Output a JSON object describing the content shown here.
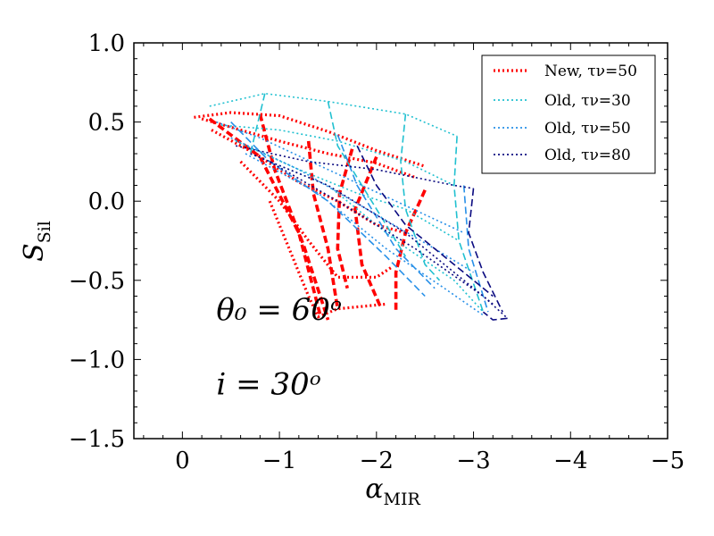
{
  "chart_data": {
    "type": "line",
    "xlabel": "α",
    "xlabel_sub": "MIR",
    "ylabel": "S",
    "ylabel_sub": "Sil",
    "xlim": [
      0.5,
      -5
    ],
    "ylim": [
      -1.5,
      1.0
    ],
    "x_ticks": [
      0,
      -1,
      -2,
      -3,
      -4,
      -5
    ],
    "x_tick_labels": [
      "0",
      "−1",
      "−2",
      "−3",
      "−4",
      "−5"
    ],
    "y_ticks": [
      1.0,
      0.5,
      0.0,
      -0.5,
      -1.0,
      -1.5
    ],
    "y_tick_labels": [
      "1.0",
      "0.5",
      "0.0",
      "−0.5",
      "−1.0",
      "−1.5"
    ],
    "annotations": [
      {
        "text": "θ₀ = 60ᵒ",
        "x": -0.35,
        "y": -1.05
      },
      {
        "text": "i = 30ᵒ",
        "x": -0.35,
        "y": -0.68
      }
    ],
    "legend": {
      "location": "upper right",
      "entries": [
        {
          "label": "New, τν=50",
          "color": "#ff0000",
          "style": "dotted-thick"
        },
        {
          "label": "Old, τν=30",
          "color": "#20c0d0",
          "style": "dotted"
        },
        {
          "label": "Old, τν=50",
          "color": "#2890e8",
          "style": "dotted"
        },
        {
          "label": "Old, τν=80",
          "color": "#0a0a80",
          "style": "dotted"
        }
      ]
    },
    "series": [
      {
        "name": "New, τν=50",
        "color": "#ff0000",
        "dash": "dotted",
        "width": 3.2,
        "points": [
          [
            -0.12,
            0.53
          ],
          [
            -0.5,
            0.56
          ],
          [
            -1.0,
            0.54
          ],
          [
            -1.5,
            0.44
          ],
          [
            -2.0,
            0.32
          ],
          [
            -2.5,
            0.22
          ]
        ]
      },
      {
        "name": "New, τν=50",
        "color": "#ff0000",
        "dash": "dotted",
        "width": 3.2,
        "points": [
          [
            -0.2,
            0.52
          ],
          [
            -0.6,
            0.45
          ],
          [
            -1.0,
            0.38
          ],
          [
            -1.5,
            0.3
          ],
          [
            -2.0,
            0.24
          ],
          [
            -2.4,
            0.15
          ]
        ]
      },
      {
        "name": "New, τν=50",
        "color": "#ff0000",
        "dash": "dotted",
        "width": 3.2,
        "points": [
          [
            -0.3,
            0.45
          ],
          [
            -0.75,
            0.3
          ],
          [
            -1.2,
            0.12
          ],
          [
            -1.6,
            0.0
          ],
          [
            -2.0,
            -0.15
          ],
          [
            -2.3,
            -0.2
          ]
        ]
      },
      {
        "name": "New, τν=50",
        "color": "#ff0000",
        "dash": "dotted",
        "width": 3.2,
        "points": [
          [
            -0.6,
            0.25
          ],
          [
            -1.0,
            0.0
          ],
          [
            -1.3,
            -0.25
          ],
          [
            -1.6,
            -0.48
          ],
          [
            -2.0,
            -0.48
          ],
          [
            -2.15,
            -0.42
          ]
        ]
      },
      {
        "name": "New, τν=50",
        "color": "#ff0000",
        "dash": "dotted",
        "width": 3.2,
        "points": [
          [
            -0.9,
            0.0
          ],
          [
            -1.1,
            -0.3
          ],
          [
            -1.3,
            -0.6
          ],
          [
            -1.4,
            -0.73
          ],
          [
            -1.6,
            -0.68
          ],
          [
            -2.1,
            -0.65
          ]
        ]
      },
      {
        "name": "New, τν=50",
        "color": "#ff0000",
        "dash": "dashed",
        "width": 3.6,
        "points": [
          [
            -0.28,
            0.52
          ],
          [
            -0.8,
            0.28
          ],
          [
            -1.2,
            -0.2
          ],
          [
            -1.42,
            -0.72
          ]
        ]
      },
      {
        "name": "New, τν=50",
        "color": "#ff0000",
        "dash": "dashed",
        "width": 3.6,
        "points": [
          [
            -0.8,
            0.55
          ],
          [
            -0.95,
            0.2
          ],
          [
            -1.25,
            -0.28
          ],
          [
            -1.5,
            -0.75
          ]
        ]
      },
      {
        "name": "New, τν=50",
        "color": "#ff0000",
        "dash": "dashed",
        "width": 3.6,
        "points": [
          [
            -1.3,
            0.38
          ],
          [
            -1.35,
            0.05
          ],
          [
            -1.5,
            -0.3
          ],
          [
            -1.6,
            -0.68
          ]
        ]
      },
      {
        "name": "New, τν=50",
        "color": "#ff0000",
        "dash": "dashed",
        "width": 3.6,
        "points": [
          [
            -1.75,
            0.33
          ],
          [
            -1.62,
            0.05
          ],
          [
            -1.6,
            -0.3
          ],
          [
            -1.7,
            -0.55
          ]
        ]
      },
      {
        "name": "New, τν=50",
        "color": "#ff0000",
        "dash": "dashed",
        "width": 3.6,
        "points": [
          [
            -2.0,
            0.28
          ],
          [
            -1.78,
            -0.05
          ],
          [
            -1.85,
            -0.4
          ],
          [
            -2.05,
            -0.68
          ]
        ]
      },
      {
        "name": "New, τν=50",
        "color": "#ff0000",
        "dash": "dashed",
        "width": 3.6,
        "points": [
          [
            -2.5,
            0.07
          ],
          [
            -2.3,
            -0.2
          ],
          [
            -2.2,
            -0.45
          ],
          [
            -2.2,
            -0.7
          ]
        ]
      },
      {
        "name": "Old, τν=30",
        "color": "#20c0d0",
        "dash": "dotted",
        "width": 1.6,
        "points": [
          [
            -0.28,
            0.6
          ],
          [
            -0.85,
            0.68
          ],
          [
            -1.5,
            0.63
          ],
          [
            -2.3,
            0.55
          ],
          [
            -2.83,
            0.41
          ]
        ]
      },
      {
        "name": "Old, τν=30",
        "color": "#20c0d0",
        "dash": "dotted",
        "width": 1.6,
        "points": [
          [
            -0.4,
            0.48
          ],
          [
            -1.0,
            0.45
          ],
          [
            -1.6,
            0.38
          ],
          [
            -2.3,
            0.25
          ],
          [
            -2.8,
            0.1
          ]
        ]
      },
      {
        "name": "Old, τν=30",
        "color": "#20c0d0",
        "dash": "dotted",
        "width": 1.6,
        "points": [
          [
            -0.55,
            0.38
          ],
          [
            -1.2,
            0.2
          ],
          [
            -1.8,
            0.05
          ],
          [
            -2.3,
            -0.05
          ],
          [
            -2.85,
            -0.25
          ]
        ]
      },
      {
        "name": "Old, τν=30",
        "color": "#20c0d0",
        "dash": "dotted",
        "width": 1.6,
        "points": [
          [
            -0.7,
            0.3
          ],
          [
            -1.5,
            0.1
          ],
          [
            -2.2,
            -0.25
          ],
          [
            -2.8,
            -0.5
          ],
          [
            -3.1,
            -0.7
          ]
        ]
      },
      {
        "name": "Old, τν=30",
        "color": "#20c0d0",
        "dash": "dashed",
        "width": 1.6,
        "points": [
          [
            -0.85,
            0.68
          ],
          [
            -0.7,
            0.3
          ]
        ]
      },
      {
        "name": "Old, τν=30",
        "color": "#20c0d0",
        "dash": "dashed",
        "width": 1.6,
        "points": [
          [
            -1.5,
            0.63
          ],
          [
            -1.6,
            0.35
          ],
          [
            -1.95,
            0.0
          ],
          [
            -2.3,
            -0.35
          ]
        ]
      },
      {
        "name": "Old, τν=30",
        "color": "#20c0d0",
        "dash": "dashed",
        "width": 1.6,
        "points": [
          [
            -2.3,
            0.55
          ],
          [
            -2.25,
            0.25
          ],
          [
            -2.3,
            -0.05
          ],
          [
            -2.5,
            -0.4
          ],
          [
            -2.65,
            -0.5
          ]
        ]
      },
      {
        "name": "Old, τν=30",
        "color": "#20c0d0",
        "dash": "dashed",
        "width": 1.6,
        "points": [
          [
            -2.83,
            0.41
          ],
          [
            -2.8,
            0.1
          ],
          [
            -2.85,
            -0.25
          ],
          [
            -3.1,
            -0.7
          ]
        ]
      },
      {
        "name": "Old, τν=50",
        "color": "#2890e8",
        "dash": "dotted",
        "width": 1.6,
        "points": [
          [
            -0.35,
            0.5
          ],
          [
            -0.8,
            0.4
          ],
          [
            -1.5,
            0.2
          ],
          [
            -2.2,
            0.0
          ],
          [
            -2.9,
            -0.2
          ]
        ]
      },
      {
        "name": "Old, τν=50",
        "color": "#2890e8",
        "dash": "dotted",
        "width": 1.6,
        "points": [
          [
            -0.5,
            0.4
          ],
          [
            -1.2,
            0.2
          ],
          [
            -1.9,
            -0.05
          ],
          [
            -2.6,
            -0.3
          ],
          [
            -3.0,
            -0.45
          ]
        ]
      },
      {
        "name": "Old, τν=50",
        "color": "#2890e8",
        "dash": "dotted",
        "width": 1.6,
        "points": [
          [
            -0.65,
            0.3
          ],
          [
            -1.4,
            0.05
          ],
          [
            -2.1,
            -0.3
          ],
          [
            -2.7,
            -0.55
          ],
          [
            -3.1,
            -0.72
          ]
        ]
      },
      {
        "name": "Old, τν=50",
        "color": "#2890e8",
        "dash": "dashed",
        "width": 1.6,
        "points": [
          [
            -0.5,
            0.5
          ],
          [
            -0.9,
            0.25
          ],
          [
            -1.5,
            0.0
          ],
          [
            -2.1,
            -0.35
          ],
          [
            -2.5,
            -0.6
          ]
        ]
      },
      {
        "name": "Old, τν=50",
        "color": "#2890e8",
        "dash": "dashed",
        "width": 1.6,
        "points": [
          [
            -1.6,
            0.42
          ],
          [
            -1.8,
            0.1
          ],
          [
            -2.2,
            -0.3
          ],
          [
            -2.6,
            -0.55
          ]
        ]
      },
      {
        "name": "Old, τν=50",
        "color": "#2890e8",
        "dash": "dashed",
        "width": 1.6,
        "points": [
          [
            -2.9,
            0.1
          ],
          [
            -2.95,
            -0.3
          ],
          [
            -3.15,
            -0.7
          ]
        ]
      },
      {
        "name": "Old, τν=80",
        "color": "#0a0a80",
        "dash": "dotted",
        "width": 1.6,
        "points": [
          [
            -0.55,
            0.35
          ],
          [
            -1.3,
            0.25
          ],
          [
            -2.0,
            0.2
          ],
          [
            -2.8,
            0.1
          ],
          [
            -3.0,
            0.08
          ]
        ]
      },
      {
        "name": "Old, τν=80",
        "color": "#0a0a80",
        "dash": "dotted",
        "width": 1.6,
        "points": [
          [
            -0.7,
            0.3
          ],
          [
            -1.5,
            0.1
          ],
          [
            -2.3,
            -0.2
          ],
          [
            -2.9,
            -0.5
          ],
          [
            -3.2,
            -0.65
          ]
        ]
      },
      {
        "name": "Old, τν=80",
        "color": "#0a0a80",
        "dash": "dotted",
        "width": 1.6,
        "points": [
          [
            -0.9,
            0.25
          ],
          [
            -1.6,
            0.0
          ],
          [
            -2.4,
            -0.3
          ],
          [
            -3.1,
            -0.6
          ],
          [
            -3.35,
            -0.74
          ]
        ]
      },
      {
        "name": "Old, τν=80",
        "color": "#0a0a80",
        "dash": "dashed",
        "width": 1.6,
        "points": [
          [
            -1.8,
            0.35
          ],
          [
            -2.0,
            0.1
          ],
          [
            -2.3,
            -0.15
          ],
          [
            -2.8,
            -0.4
          ],
          [
            -3.2,
            -0.6
          ]
        ]
      },
      {
        "name": "Old, τν=80",
        "color": "#0a0a80",
        "dash": "dashed",
        "width": 1.6,
        "points": [
          [
            -3.0,
            0.08
          ],
          [
            -2.95,
            -0.2
          ],
          [
            -3.1,
            -0.45
          ],
          [
            -3.3,
            -0.7
          ]
        ]
      },
      {
        "name": "Old, τν=80",
        "color": "#0a0a80",
        "dash": "dashed",
        "width": 1.6,
        "points": [
          [
            -3.35,
            -0.74
          ],
          [
            -3.2,
            -0.75
          ],
          [
            -3.1,
            -0.7
          ]
        ]
      }
    ]
  }
}
